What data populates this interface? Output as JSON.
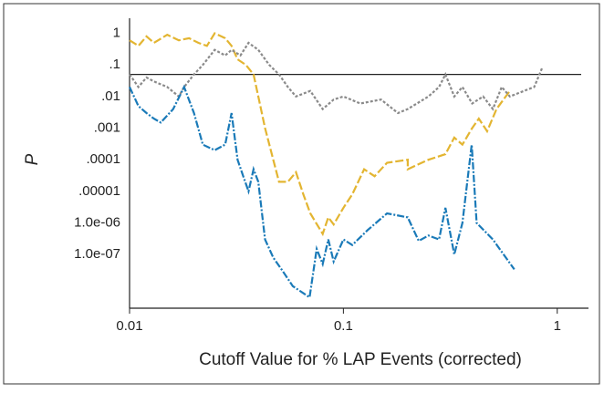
{
  "chart_data": {
    "type": "line",
    "xlabel": "Cutoff Value for % LAP Events (corrected)",
    "ylabel": "P",
    "xscale": "log",
    "yscale": "log",
    "xlim": [
      0.01,
      1.4
    ],
    "ylim": [
      2e-09,
      3
    ],
    "xticks": [
      0.01,
      0.1,
      1
    ],
    "yticks": [
      1,
      {
        "value": 0.1,
        "label": ".1"
      },
      {
        "value": 0.01,
        "label": ".01"
      },
      {
        "value": 0.001,
        "label": ".001"
      },
      {
        "value": 0.0001,
        "label": ".0001"
      },
      {
        "value": 1e-05,
        "label": ".00001"
      },
      {
        "value": 1e-06,
        "label": "1.0e-06"
      },
      {
        "value": 1e-07,
        "label": "1.0e-07"
      }
    ],
    "hline": 0.05,
    "series": [
      {
        "color": "#e3b531",
        "dash": "9,3",
        "x": [
          0.01,
          0.011,
          0.012,
          0.013,
          0.015,
          0.017,
          0.019,
          0.021,
          0.023,
          0.025,
          0.028,
          0.03,
          0.032,
          0.035,
          0.038,
          0.04,
          0.043,
          0.047,
          0.05,
          0.055,
          0.06,
          0.065,
          0.07,
          0.08,
          0.085,
          0.09,
          0.1,
          0.11,
          0.125,
          0.14,
          0.16,
          0.2,
          0.2,
          0.25,
          0.3,
          0.33,
          0.36,
          0.4,
          0.43,
          0.47,
          0.52,
          0.6
        ],
        "values": [
          0.6,
          0.4,
          0.8,
          0.5,
          0.9,
          0.6,
          0.7,
          0.5,
          0.4,
          1,
          0.7,
          0.4,
          0.15,
          0.1,
          0.05,
          0.01,
          0.001,
          0.0001,
          2e-05,
          2e-05,
          4e-05,
          8e-06,
          2e-06,
          4.5e-07,
          1.5e-06,
          9e-07,
          3e-06,
          8e-06,
          5e-05,
          3e-05,
          8e-05,
          0.0001,
          5e-05,
          0.0001,
          0.00015,
          0.0005,
          0.0003,
          0.001,
          0.002,
          0.0008,
          0.004,
          0.015
        ]
      },
      {
        "color": "#8a8a8a",
        "dash": "3,2",
        "x": [
          0.01,
          0.011,
          0.012,
          0.013,
          0.015,
          0.017,
          0.018,
          0.02,
          0.022,
          0.025,
          0.028,
          0.03,
          0.033,
          0.036,
          0.04,
          0.045,
          0.05,
          0.055,
          0.06,
          0.07,
          0.08,
          0.09,
          0.1,
          0.12,
          0.15,
          0.18,
          0.2,
          0.25,
          0.28,
          0.3,
          0.33,
          0.36,
          0.4,
          0.45,
          0.5,
          0.55,
          0.6,
          0.7,
          0.78,
          0.85
        ],
        "values": [
          0.05,
          0.02,
          0.04,
          0.03,
          0.02,
          0.01,
          0.02,
          0.05,
          0.1,
          0.3,
          0.2,
          0.3,
          0.2,
          0.5,
          0.3,
          0.1,
          0.05,
          0.02,
          0.01,
          0.015,
          0.004,
          0.008,
          0.01,
          0.006,
          0.008,
          0.003,
          0.004,
          0.01,
          0.02,
          0.05,
          0.01,
          0.02,
          0.006,
          0.01,
          0.004,
          0.02,
          0.01,
          0.015,
          0.02,
          0.08
        ]
      },
      {
        "color": "#1a7ab8",
        "dash": "8,2,2,2",
        "x": [
          0.01,
          0.011,
          0.012,
          0.013,
          0.014,
          0.016,
          0.018,
          0.02,
          0.022,
          0.025,
          0.028,
          0.03,
          0.032,
          0.034,
          0.036,
          0.038,
          0.04,
          0.043,
          0.047,
          0.052,
          0.058,
          0.0695,
          0.075,
          0.08,
          0.085,
          0.09,
          0.1,
          0.11,
          0.13,
          0.16,
          0.2,
          0.225,
          0.25,
          0.28,
          0.3,
          0.33,
          0.36,
          0.398,
          0.42,
          0.5,
          0.63
        ],
        "values": [
          0.02,
          0.005,
          0.003,
          0.002,
          0.0015,
          0.004,
          0.02,
          0.003,
          0.0003,
          0.0002,
          0.0003,
          0.003,
          0.0001,
          3e-05,
          1e-05,
          5e-05,
          2e-05,
          3e-07,
          8e-08,
          3e-08,
          1e-08,
          4.4e-09,
          1.5e-07,
          5e-08,
          3e-07,
          6e-08,
          3e-07,
          2e-07,
          6e-07,
          2e-06,
          1.5e-06,
          2.7e-07,
          4e-07,
          3e-07,
          3e-06,
          1e-07,
          1e-06,
          0.0003,
          1e-06,
          3e-07,
          3.4e-08
        ]
      }
    ]
  }
}
